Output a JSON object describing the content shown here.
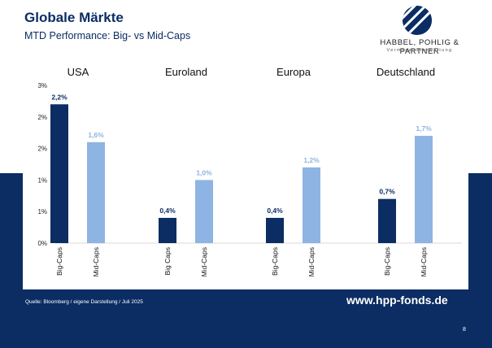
{
  "slide": {
    "title": "Globale Märkte",
    "subtitle": "MTD Performance: Big- vs Mid-Caps",
    "source": "Quelle: Bloomberg / eigene Darstellung / Juli 2025",
    "url": "www.hpp-fonds.de",
    "page_number": "8"
  },
  "logo": {
    "name": "HABBEL, POHLIG & PARTNER",
    "tagline": "Vermögensverwaltung",
    "icon": "striped-circle-logo-icon"
  },
  "colors": {
    "background_band": "#0b2d63",
    "big_caps": "#0b2d63",
    "mid_caps": "#8eb4e3",
    "title_text": "#0b2d63"
  },
  "chart_data": {
    "type": "bar",
    "title": "",
    "xlabel": "",
    "ylabel": "",
    "groups": [
      "USA",
      "Euroland",
      "Europa",
      "Deutschland"
    ],
    "bar_labels": [
      [
        "Big-Caps",
        "Mid-Caps"
      ],
      [
        "Big Caps",
        "Mid-Caps"
      ],
      [
        "Big-Caps",
        "Mid-Caps"
      ],
      [
        "Big-Caps",
        "Mid-Caps"
      ]
    ],
    "series": [
      {
        "key": "big",
        "values": [
          2.2,
          0.4,
          0.4,
          0.7
        ],
        "data_labels": [
          "2,2%",
          "0,4%",
          "0,4%",
          "0,7%"
        ]
      },
      {
        "key": "mid",
        "values": [
          1.6,
          1.0,
          1.2,
          1.7
        ],
        "data_labels": [
          "1,6%",
          "1,0%",
          "1,2%",
          "1,7%"
        ]
      }
    ],
    "ytick_labels": [
      "0%",
      "1%",
      "1%",
      "2%",
      "2%",
      "3%"
    ],
    "ytick_values": [
      0,
      0.5,
      1.0,
      1.5,
      2.0,
      2.5
    ],
    "ylim": [
      0,
      2.5
    ],
    "grid": false,
    "legend": "none"
  }
}
